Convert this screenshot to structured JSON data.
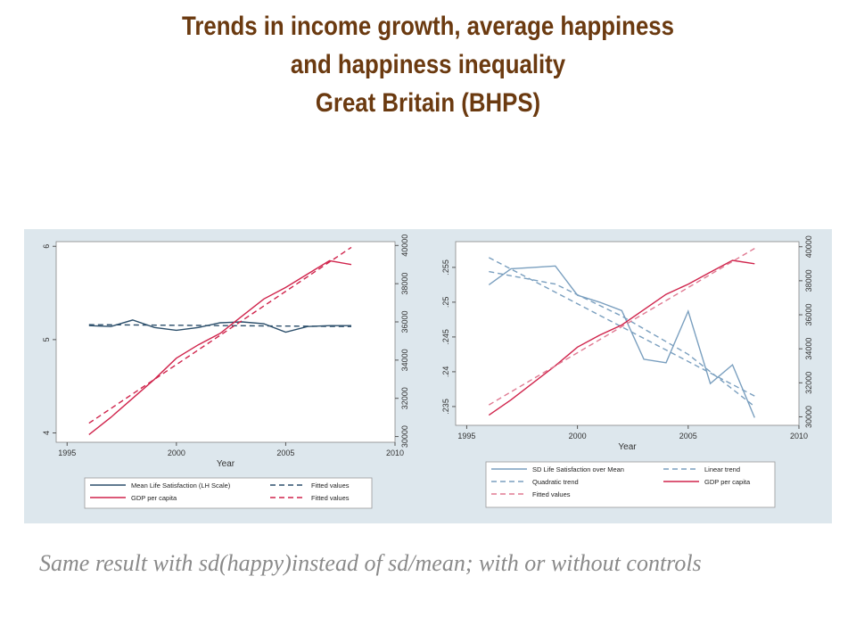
{
  "title": {
    "line1": "Trends in income growth, average happiness",
    "line2": "and happiness inequality",
    "line3": "Great Britain (BHPS)"
  },
  "caption": "Same result with sd(happy)instead of sd/mean; with or without controls",
  "chart_data": [
    {
      "type": "line",
      "xlabel": "Year",
      "xlim": [
        1994.5,
        2010
      ],
      "x_ticks": [
        "1995",
        "2000",
        "2005",
        "2010"
      ],
      "y_left_lim": [
        3.9,
        6.05
      ],
      "y_left_ticks": [
        "4",
        "5",
        "6"
      ],
      "y_right_lim": [
        29700,
        40200
      ],
      "y_right_ticks": [
        "30000",
        "32000",
        "34000",
        "36000",
        "38000",
        "40000"
      ],
      "legend_position": "bottom",
      "series": [
        {
          "name": "Mean Life Satisfaction (LH Scale)",
          "axis": "left",
          "color": "#2c4f6b",
          "dash": false,
          "x": [
            1996,
            1997,
            1998,
            1999,
            2000,
            2001,
            2002,
            2003,
            2004,
            2005,
            2006,
            2007,
            2008
          ],
          "values": [
            5.15,
            5.14,
            5.21,
            5.13,
            5.1,
            5.13,
            5.18,
            5.19,
            5.17,
            5.08,
            5.14,
            5.15,
            5.15
          ]
        },
        {
          "name": "Fitted values",
          "axis": "left",
          "color": "#2c4f6b",
          "dash": true,
          "x": [
            1996,
            2008
          ],
          "values": [
            5.16,
            5.14
          ]
        },
        {
          "name": "GDP per capita",
          "axis": "right",
          "color": "#d0244c",
          "dash": false,
          "x": [
            1996,
            1997,
            1998,
            1999,
            2000,
            2001,
            2002,
            2003,
            2004,
            2005,
            2006,
            2007,
            2008
          ],
          "values": [
            30100,
            31000,
            32000,
            33000,
            34100,
            34800,
            35400,
            36300,
            37200,
            37800,
            38500,
            39200,
            39000
          ]
        },
        {
          "name": "Fitted values",
          "axis": "right",
          "color": "#d0244c",
          "dash": true,
          "x": [
            1996,
            2008
          ],
          "values": [
            30700,
            39900
          ]
        }
      ]
    },
    {
      "type": "line",
      "xlabel": "Year",
      "xlim": [
        1994.5,
        2010
      ],
      "x_ticks": [
        "1995",
        "2000",
        "2005",
        "2010"
      ],
      "y_left_lim": [
        0.2323,
        0.2587
      ],
      "y_left_ticks": [
        ".235",
        ".24",
        ".245",
        ".25",
        ".255"
      ],
      "y_right_lim": [
        29500,
        40300
      ],
      "y_right_ticks": [
        "30000",
        "32000",
        "34000",
        "36000",
        "38000",
        "40000"
      ],
      "legend_position": "bottom",
      "series": [
        {
          "name": "SD Life Satisfaction over Mean",
          "axis": "left",
          "color": "#7a9fbf",
          "dash": false,
          "x": [
            1996,
            1997,
            1998,
            1999,
            2000,
            2001,
            2002,
            2003,
            2004,
            2005,
            2006,
            2007,
            2008
          ],
          "values": [
            0.2525,
            0.2548,
            0.255,
            0.2552,
            0.251,
            0.25,
            0.2488,
            0.2418,
            0.2413,
            0.2487,
            0.2383,
            0.241,
            0.2334
          ]
        },
        {
          "name": "Linear trend",
          "axis": "left",
          "color": "#7a9fbf",
          "dash": true,
          "x": [
            1996,
            2008
          ],
          "values": [
            0.2564,
            0.2365
          ]
        },
        {
          "name": "Quadratic trend",
          "axis": "left",
          "color": "#7a9fbf",
          "dash": true,
          "x": [
            1996,
            1999,
            2002,
            2005,
            2008
          ],
          "values": [
            0.2544,
            0.2526,
            0.248,
            0.2425,
            0.235
          ]
        },
        {
          "name": "GDP per capita",
          "axis": "right",
          "color": "#d0244c",
          "dash": false,
          "x": [
            1996,
            1997,
            1998,
            1999,
            2000,
            2001,
            2002,
            2003,
            2004,
            2005,
            2006,
            2007,
            2008
          ],
          "values": [
            30100,
            31000,
            32000,
            33000,
            34100,
            34800,
            35400,
            36300,
            37200,
            37800,
            38500,
            39200,
            39000
          ]
        },
        {
          "name": "Fitted values",
          "axis": "right",
          "color": "#e07a92",
          "dash": true,
          "x": [
            1996,
            2008
          ],
          "values": [
            30700,
            39900
          ]
        }
      ]
    }
  ]
}
